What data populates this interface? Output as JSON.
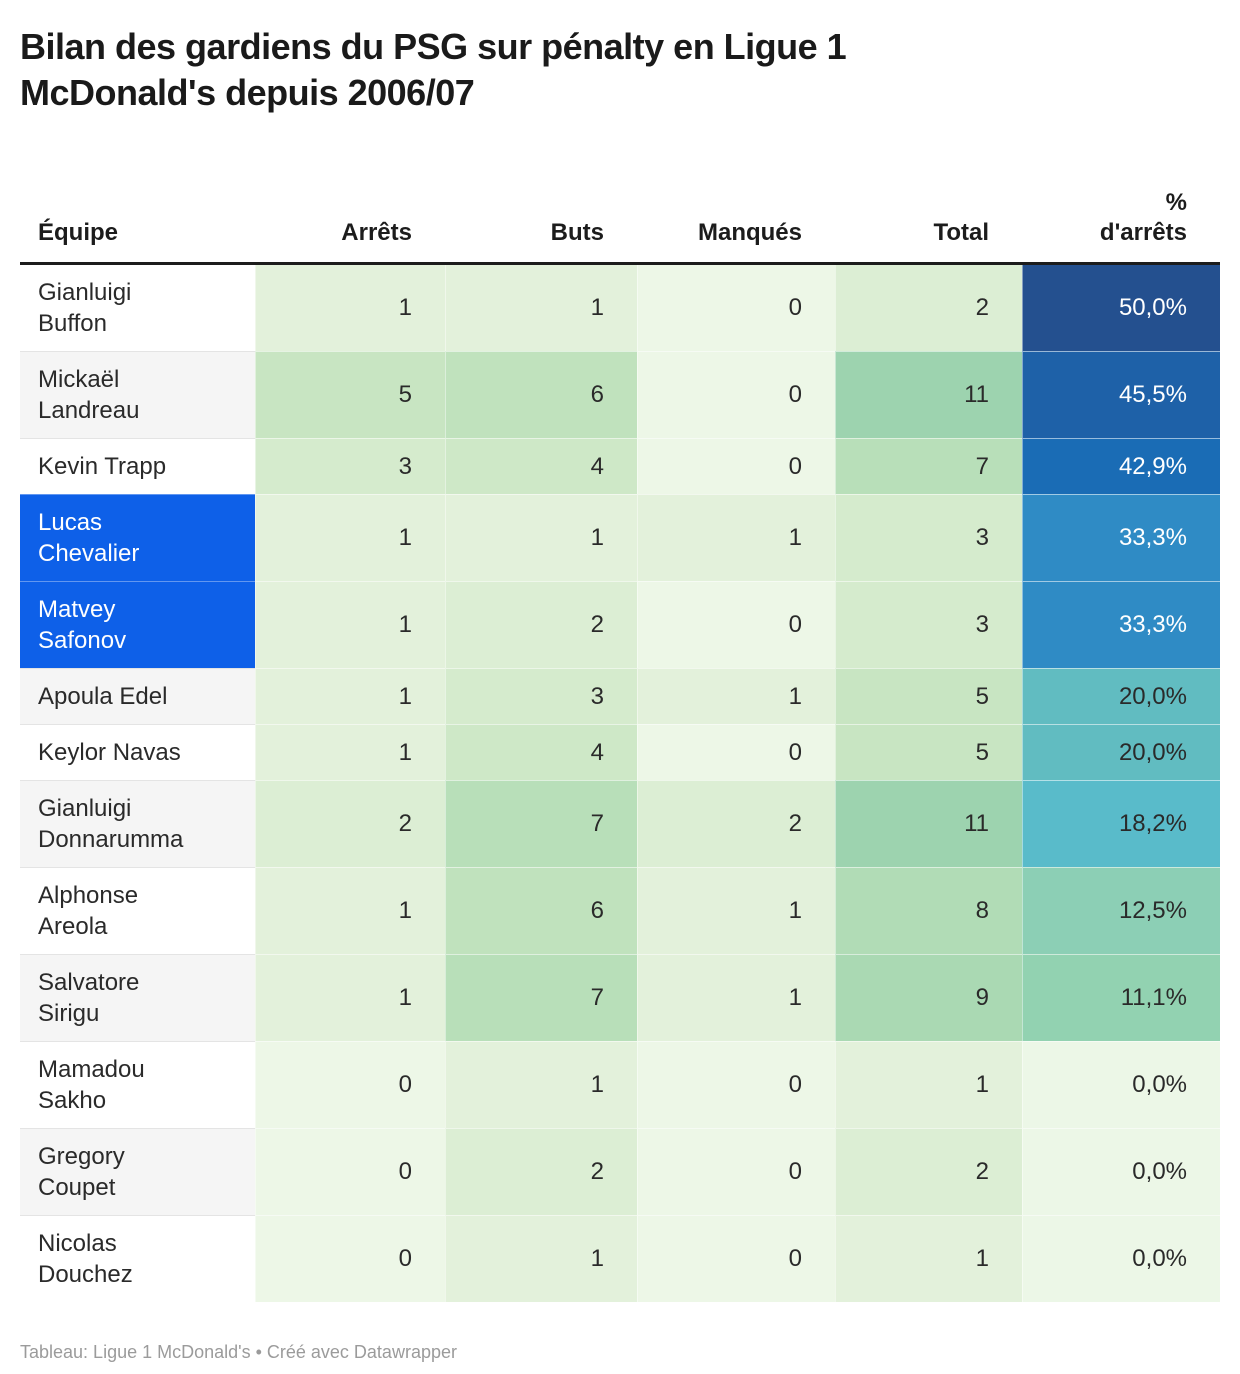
{
  "title": "Bilan des gardiens du PSG sur pénalty en Ligue 1 McDonald's depuis 2006/07",
  "footer": "Tableau: Ligue 1 McDonald's • Créé avec Datawrapper",
  "chart_data": {
    "type": "table",
    "title": "Bilan des gardiens du PSG sur pénalty en Ligue 1 McDonald's depuis 2006/07",
    "columns": [
      "Équipe",
      "Arrêts",
      "Buts",
      "Manqués",
      "Total",
      "% d'arrêts"
    ],
    "rows": [
      [
        "Gianluigi Buffon",
        1,
        1,
        0,
        2,
        "50,0%"
      ],
      [
        "Mickaël Landreau",
        5,
        6,
        0,
        11,
        "45,5%"
      ],
      [
        "Kevin Trapp",
        3,
        4,
        0,
        7,
        "42,9%"
      ],
      [
        "Lucas Chevalier",
        1,
        1,
        1,
        3,
        "33,3%"
      ],
      [
        "Matvey Safonov",
        1,
        2,
        0,
        3,
        "33,3%"
      ],
      [
        "Apoula Edel",
        1,
        3,
        1,
        5,
        "20,0%"
      ],
      [
        "Keylor Navas",
        1,
        4,
        0,
        5,
        "20,0%"
      ],
      [
        "Gianluigi Donnarumma",
        2,
        7,
        2,
        11,
        "18,2%"
      ],
      [
        "Alphonse Areola",
        1,
        6,
        1,
        8,
        "12,5%"
      ],
      [
        "Salvatore Sirigu",
        1,
        7,
        1,
        9,
        "11,1%"
      ],
      [
        "Mamadou Sakho",
        0,
        1,
        0,
        1,
        "0,0%"
      ],
      [
        "Gregory Coupet",
        0,
        2,
        0,
        2,
        "0,0%"
      ],
      [
        "Nicolas Douchez",
        0,
        1,
        0,
        1,
        "0,0%"
      ]
    ],
    "highlighted_rows": [
      "Lucas Chevalier",
      "Matvey Safonov"
    ],
    "legend_position": "none",
    "grid": false
  },
  "table": {
    "columns": [
      {
        "key": "equipe",
        "display": "Équipe",
        "align": "left"
      },
      {
        "key": "arrets",
        "display": "Arrêts",
        "align": "right"
      },
      {
        "key": "buts",
        "display": "Buts",
        "align": "right"
      },
      {
        "key": "manques",
        "display": "Manqués",
        "align": "right"
      },
      {
        "key": "total",
        "display": "Total",
        "align": "right"
      },
      {
        "key": "pct",
        "display": "%\nd'arrêts",
        "align": "right"
      }
    ],
    "rows": [
      {
        "name": "Gianluigi\nBuffon",
        "arrets": 1,
        "buts": 1,
        "manques": 0,
        "total": 2,
        "pct": "50,0%",
        "highlight": false
      },
      {
        "name": "Mickaël\nLandreau",
        "arrets": 5,
        "buts": 6,
        "manques": 0,
        "total": 11,
        "pct": "45,5%",
        "highlight": false
      },
      {
        "name": "Kevin Trapp",
        "arrets": 3,
        "buts": 4,
        "manques": 0,
        "total": 7,
        "pct": "42,9%",
        "highlight": false
      },
      {
        "name": "Lucas\nChevalier",
        "arrets": 1,
        "buts": 1,
        "manques": 1,
        "total": 3,
        "pct": "33,3%",
        "highlight": true
      },
      {
        "name": "Matvey\nSafonov",
        "arrets": 1,
        "buts": 2,
        "manques": 0,
        "total": 3,
        "pct": "33,3%",
        "highlight": true
      },
      {
        "name": "Apoula Edel",
        "arrets": 1,
        "buts": 3,
        "manques": 1,
        "total": 5,
        "pct": "20,0%",
        "highlight": false
      },
      {
        "name": "Keylor Navas",
        "arrets": 1,
        "buts": 4,
        "manques": 0,
        "total": 5,
        "pct": "20,0%",
        "highlight": false
      },
      {
        "name": "Gianluigi\nDonnarumma",
        "arrets": 2,
        "buts": 7,
        "manques": 2,
        "total": 11,
        "pct": "18,2%",
        "highlight": false
      },
      {
        "name": "Alphonse\nAreola",
        "arrets": 1,
        "buts": 6,
        "manques": 1,
        "total": 8,
        "pct": "12,5%",
        "highlight": false
      },
      {
        "name": "Salvatore\nSirigu",
        "arrets": 1,
        "buts": 7,
        "manques": 1,
        "total": 9,
        "pct": "11,1%",
        "highlight": false
      },
      {
        "name": "Mamadou\nSakho",
        "arrets": 0,
        "buts": 1,
        "manques": 0,
        "total": 1,
        "pct": "0,0%",
        "highlight": false
      },
      {
        "name": "Gregory\nCoupet",
        "arrets": 0,
        "buts": 2,
        "manques": 0,
        "total": 2,
        "pct": "0,0%",
        "highlight": false
      },
      {
        "name": "Nicolas\nDouchez",
        "arrets": 0,
        "buts": 1,
        "manques": 0,
        "total": 1,
        "pct": "0,0%",
        "highlight": false
      }
    ]
  },
  "colors": {
    "count_scale": {
      "0": "#edf7e7",
      "1": "#e3f1db",
      "2": "#dceed4",
      "3": "#d5ebcd",
      "4": "#cee8c7",
      "5": "#c8e5c2",
      "6": "#c0e2bd",
      "7": "#b8dfb9",
      "8": "#b1dcb6",
      "9": "#aad9b3",
      "11": "#9dd3af"
    },
    "pct_scale": {
      "50,0%": {
        "bg": "#24508f",
        "fg": "#ffffff"
      },
      "45,5%": {
        "bg": "#1e61a8",
        "fg": "#ffffff"
      },
      "42,9%": {
        "bg": "#1a6cb5",
        "fg": "#ffffff"
      },
      "33,3%": {
        "bg": "#2f8bc5",
        "fg": "#ffffff"
      },
      "20,0%": {
        "bg": "#61bcc1",
        "fg": "#2a2a2a"
      },
      "18,2%": {
        "bg": "#59bbca",
        "fg": "#2a2a2a"
      },
      "12,5%": {
        "bg": "#8ccfb5",
        "fg": "#2a2a2a"
      },
      "11,1%": {
        "bg": "#92d2b1",
        "fg": "#2a2a2a"
      },
      "0,0%": {
        "bg": "#ecf7e7",
        "fg": "#2a2a2a"
      }
    },
    "highlight_bg": "#0e60e8",
    "highlight_fg": "#ffffff",
    "zebra_bg": "#f5f5f5",
    "header_rule": "#1c1c1c",
    "title_color": "#1a1a1a",
    "footer_color": "#9b9b9b"
  }
}
